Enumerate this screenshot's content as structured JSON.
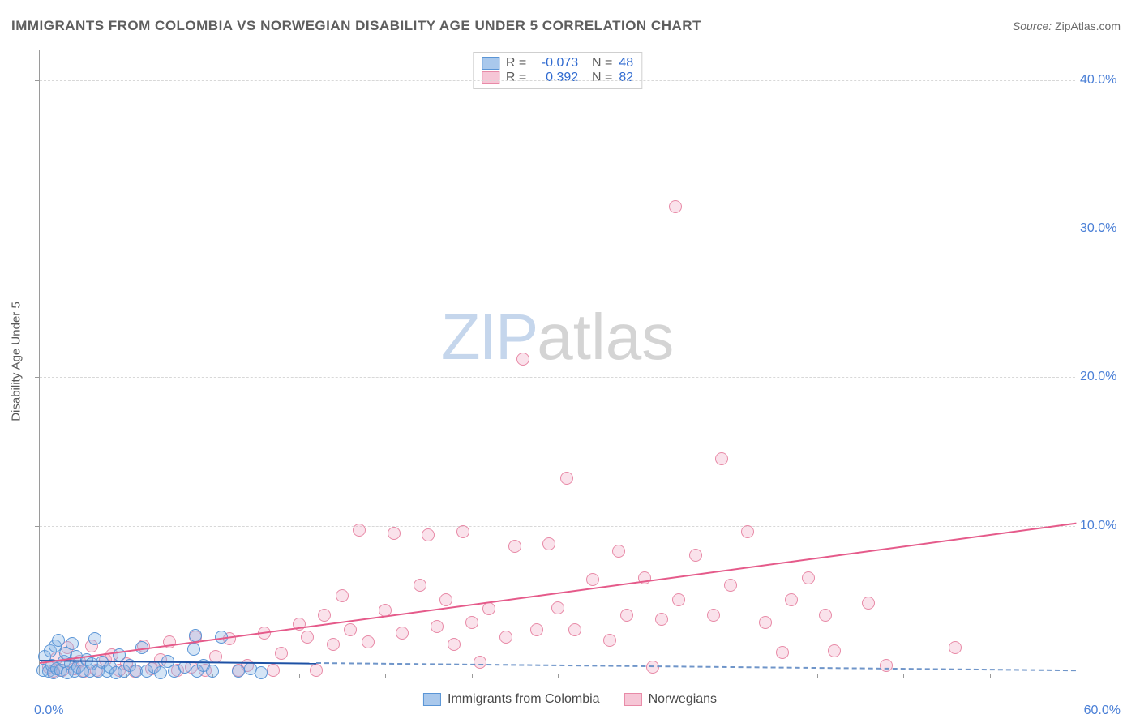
{
  "title": "IMMIGRANTS FROM COLOMBIA VS NORWEGIAN DISABILITY AGE UNDER 5 CORRELATION CHART",
  "source_label": "Source:",
  "source_value": "ZipAtlas.com",
  "y_axis_title": "Disability Age Under 5",
  "watermark": {
    "zip": "ZIP",
    "atlas": "atlas"
  },
  "chart": {
    "type": "scatter",
    "xlim": [
      0,
      60
    ],
    "ylim": [
      0,
      42
    ],
    "x_min_label": "0.0%",
    "x_max_label": "60.0%",
    "x_tick_step": 5,
    "y_ticks": [
      10,
      20,
      30,
      40
    ],
    "y_tick_labels": [
      "10.0%",
      "20.0%",
      "30.0%",
      "40.0%"
    ],
    "grid_color": "#d8d8d8",
    "background_color": "#ffffff",
    "axis_color": "#9a9a9a",
    "label_color": "#4a7fd6",
    "marker_radius": 8,
    "marker_border_width": 1.5,
    "series": [
      {
        "name": "Immigrants from Colombia",
        "fill": "rgba(135,180,230,0.35)",
        "stroke": "#5a95d6",
        "swatch_fill": "#a9c8ec",
        "swatch_border": "#5a95d6",
        "R": "-0.073",
        "N": "48",
        "trend": {
          "x1": 0,
          "y1": 1.0,
          "x2": 16,
          "y2": 0.8,
          "style": "solid",
          "color": "#1d51a5",
          "ext_x2": 60,
          "ext_y2": 0.3,
          "ext_style": "dashed",
          "ext_color": "#6f95c9"
        },
        "points": [
          [
            0.2,
            0.3
          ],
          [
            0.3,
            1.2
          ],
          [
            0.5,
            0.2
          ],
          [
            0.6,
            1.6
          ],
          [
            0.7,
            0.6
          ],
          [
            0.8,
            0.1
          ],
          [
            0.9,
            1.9
          ],
          [
            1.0,
            0.4
          ],
          [
            1.1,
            2.3
          ],
          [
            1.2,
            0.3
          ],
          [
            1.4,
            0.9
          ],
          [
            1.5,
            1.4
          ],
          [
            1.6,
            0.1
          ],
          [
            1.8,
            0.7
          ],
          [
            1.9,
            2.1
          ],
          [
            2.0,
            0.2
          ],
          [
            2.1,
            1.2
          ],
          [
            2.2,
            0.5
          ],
          [
            2.5,
            0.2
          ],
          [
            2.7,
            1.0
          ],
          [
            2.9,
            0.2
          ],
          [
            3.0,
            0.7
          ],
          [
            3.2,
            2.4
          ],
          [
            3.4,
            0.2
          ],
          [
            3.6,
            0.8
          ],
          [
            3.9,
            0.2
          ],
          [
            4.1,
            0.5
          ],
          [
            4.4,
            0.1
          ],
          [
            4.6,
            1.3
          ],
          [
            4.9,
            0.2
          ],
          [
            5.2,
            0.6
          ],
          [
            5.6,
            0.2
          ],
          [
            5.9,
            1.8
          ],
          [
            6.2,
            0.2
          ],
          [
            6.6,
            0.5
          ],
          [
            7.0,
            0.1
          ],
          [
            7.4,
            0.9
          ],
          [
            7.8,
            0.2
          ],
          [
            8.4,
            0.5
          ],
          [
            8.9,
            1.7
          ],
          [
            9.0,
            2.6
          ],
          [
            9.1,
            0.2
          ],
          [
            9.5,
            0.6
          ],
          [
            10.0,
            0.2
          ],
          [
            10.5,
            2.5
          ],
          [
            11.5,
            0.2
          ],
          [
            12.2,
            0.4
          ],
          [
            12.8,
            0.1
          ]
        ]
      },
      {
        "name": "Norwegians",
        "fill": "rgba(240,160,190,0.30)",
        "stroke": "#e88aa7",
        "swatch_fill": "#f6c6d6",
        "swatch_border": "#e88aa7",
        "R": "0.392",
        "N": "82",
        "trend": {
          "x1": 0,
          "y1": 0.8,
          "x2": 60,
          "y2": 10.2,
          "style": "solid",
          "color": "#e55a8a"
        },
        "points": [
          [
            0.5,
            0.5
          ],
          [
            0.8,
            0.2
          ],
          [
            1.0,
            1.1
          ],
          [
            1.3,
            0.3
          ],
          [
            1.6,
            1.8
          ],
          [
            2.0,
            0.4
          ],
          [
            2.3,
            0.9
          ],
          [
            2.6,
            0.2
          ],
          [
            3.0,
            1.9
          ],
          [
            3.3,
            0.3
          ],
          [
            3.8,
            1.0
          ],
          [
            4.2,
            1.3
          ],
          [
            4.6,
            0.3
          ],
          [
            5.0,
            0.7
          ],
          [
            5.5,
            0.2
          ],
          [
            6.0,
            1.9
          ],
          [
            6.5,
            0.4
          ],
          [
            7.0,
            1.0
          ],
          [
            7.5,
            2.2
          ],
          [
            8.0,
            0.3
          ],
          [
            8.8,
            0.5
          ],
          [
            9.0,
            2.5
          ],
          [
            9.6,
            0.3
          ],
          [
            10.2,
            1.2
          ],
          [
            11.0,
            2.4
          ],
          [
            11.5,
            0.3
          ],
          [
            12.0,
            0.6
          ],
          [
            13.0,
            2.8
          ],
          [
            13.5,
            0.3
          ],
          [
            14.0,
            1.4
          ],
          [
            15.0,
            3.4
          ],
          [
            15.5,
            2.5
          ],
          [
            16.0,
            0.3
          ],
          [
            16.5,
            4.0
          ],
          [
            17.0,
            2.0
          ],
          [
            17.5,
            5.3
          ],
          [
            18.0,
            3.0
          ],
          [
            18.5,
            9.7
          ],
          [
            19.0,
            2.2
          ],
          [
            20.0,
            4.3
          ],
          [
            20.5,
            9.5
          ],
          [
            21.0,
            2.8
          ],
          [
            22.0,
            6.0
          ],
          [
            22.5,
            9.4
          ],
          [
            23.0,
            3.2
          ],
          [
            23.5,
            5.0
          ],
          [
            24.0,
            2.0
          ],
          [
            24.5,
            9.6
          ],
          [
            25.0,
            3.5
          ],
          [
            25.5,
            0.8
          ],
          [
            26.0,
            4.4
          ],
          [
            27.0,
            2.5
          ],
          [
            27.5,
            8.6
          ],
          [
            28.0,
            21.2
          ],
          [
            28.8,
            3.0
          ],
          [
            29.5,
            8.8
          ],
          [
            30.0,
            4.5
          ],
          [
            30.5,
            13.2
          ],
          [
            31.0,
            3.0
          ],
          [
            32.0,
            6.4
          ],
          [
            33.0,
            2.3
          ],
          [
            33.5,
            8.3
          ],
          [
            34.0,
            4.0
          ],
          [
            35.0,
            6.5
          ],
          [
            35.5,
            0.5
          ],
          [
            36.0,
            3.7
          ],
          [
            36.8,
            31.5
          ],
          [
            37.0,
            5.0
          ],
          [
            38.0,
            8.0
          ],
          [
            39.0,
            4.0
          ],
          [
            39.5,
            14.5
          ],
          [
            40.0,
            6.0
          ],
          [
            41.0,
            9.6
          ],
          [
            42.0,
            3.5
          ],
          [
            43.0,
            1.5
          ],
          [
            43.5,
            5.0
          ],
          [
            44.5,
            6.5
          ],
          [
            45.5,
            4.0
          ],
          [
            46.0,
            1.6
          ],
          [
            48.0,
            4.8
          ],
          [
            49.0,
            0.6
          ],
          [
            53.0,
            1.8
          ]
        ]
      }
    ]
  },
  "legend": {
    "items": [
      {
        "label": "Immigrants from Colombia",
        "fill": "#a9c8ec",
        "border": "#5a95d6"
      },
      {
        "label": "Norwegians",
        "fill": "#f6c6d6",
        "border": "#e88aa7"
      }
    ]
  }
}
